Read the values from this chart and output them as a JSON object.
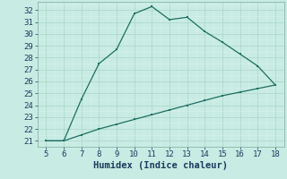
{
  "title": "",
  "xlabel": "Humidex (Indice chaleur)",
  "x_upper": [
    5,
    6,
    7,
    8,
    9,
    10,
    11,
    12,
    13,
    14,
    15,
    16,
    17,
    18
  ],
  "y_upper": [
    21,
    21,
    24.5,
    27.5,
    28.7,
    31.7,
    32.3,
    31.2,
    31.4,
    30.2,
    29.3,
    28.3,
    27.3,
    25.7
  ],
  "x_lower": [
    5,
    6,
    7,
    8,
    9,
    10,
    11,
    12,
    13,
    14,
    15,
    16,
    17,
    18
  ],
  "y_lower": [
    21,
    21,
    21.5,
    22.0,
    22.4,
    22.8,
    23.2,
    23.6,
    24.0,
    24.4,
    24.8,
    25.1,
    25.4,
    25.7
  ],
  "line_color": "#1c6e60",
  "bg_color": "#c8ece4",
  "grid_major_color": "#b0d8cc",
  "grid_minor_color": "#d8f0ea",
  "xlim": [
    4.5,
    18.5
  ],
  "ylim": [
    20.5,
    32.7
  ],
  "xticks": [
    5,
    6,
    7,
    8,
    9,
    10,
    11,
    12,
    13,
    14,
    15,
    16,
    17,
    18
  ],
  "yticks": [
    21,
    22,
    23,
    24,
    25,
    26,
    27,
    28,
    29,
    30,
    31,
    32
  ],
  "xlabel_color": "#1a3a5c",
  "tick_color": "#1a3a5c",
  "fontsize_xlabel": 7.5,
  "fontsize_tick": 6.5
}
